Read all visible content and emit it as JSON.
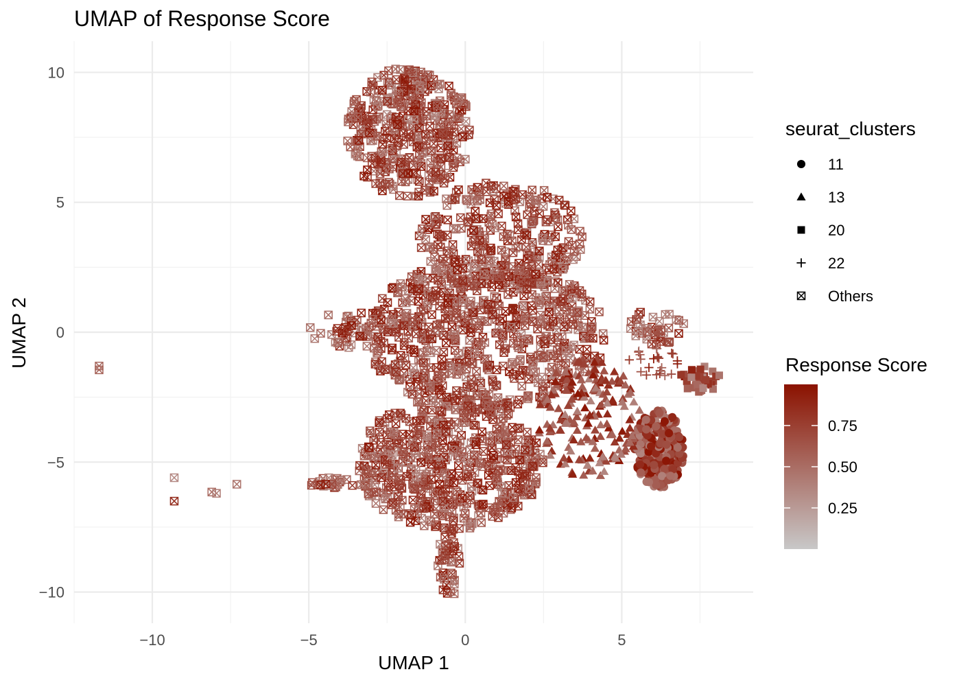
{
  "chart_data": {
    "type": "scatter",
    "title": "UMAP of Response Score",
    "xlabel": "UMAP 1",
    "ylabel": "UMAP 2",
    "xlim": [
      -12.5,
      9.2
    ],
    "ylim": [
      -11.2,
      11.2
    ],
    "x_ticks": [
      -10,
      -5,
      0,
      5
    ],
    "x_tick_labels": [
      "−10",
      "−5",
      "0",
      "5"
    ],
    "y_ticks": [
      -10,
      -5,
      0,
      5,
      10
    ],
    "y_tick_labels": [
      "−10",
      "−5",
      "0",
      "5",
      "10"
    ],
    "grid": true,
    "shape_legend": {
      "title": "seurat_clusters",
      "entries": [
        {
          "label": "11",
          "shape": "circle"
        },
        {
          "label": "13",
          "shape": "triangle"
        },
        {
          "label": "20",
          "shape": "square"
        },
        {
          "label": "22",
          "shape": "plus"
        },
        {
          "label": "Others",
          "shape": "boxed-x"
        }
      ]
    },
    "color_legend": {
      "title": "Response Score",
      "low_color": "#c8c8c8",
      "high_color": "#8b1200",
      "range": [
        0.0,
        1.0
      ],
      "ticks": [
        0.25,
        0.5,
        0.75
      ],
      "tick_labels": [
        "0.25",
        "0.50",
        "0.75"
      ]
    },
    "cluster_regions": [
      {
        "cluster": "Others",
        "shape": "boxed-x",
        "x_range": [
          -3.8,
          0.2
        ],
        "y_range": [
          5.2,
          10.2
        ],
        "n": 420
      },
      {
        "cluster": "Others",
        "shape": "boxed-x",
        "x_range": [
          -1.5,
          3.8
        ],
        "y_range": [
          1.5,
          5.8
        ],
        "n": 300
      },
      {
        "cluster": "Others",
        "shape": "boxed-x",
        "x_range": [
          -3.2,
          4.5
        ],
        "y_range": [
          -3.0,
          2.8
        ],
        "n": 700
      },
      {
        "cluster": "Others",
        "shape": "boxed-x",
        "x_range": [
          -3.5,
          2.5
        ],
        "y_range": [
          -7.6,
          -2.5
        ],
        "n": 600
      },
      {
        "cluster": "Others",
        "shape": "boxed-x",
        "x_range": [
          -0.9,
          -0.1
        ],
        "y_range": [
          -10.2,
          -7.5
        ],
        "n": 40
      },
      {
        "cluster": "Others",
        "shape": "boxed-x",
        "x_range": [
          -5.0,
          -2.5
        ],
        "y_range": [
          -0.6,
          0.9
        ],
        "n": 40
      },
      {
        "cluster": "Others",
        "shape": "boxed-x",
        "x_range": [
          -5.0,
          -3.5
        ],
        "y_range": [
          -6.0,
          -5.6
        ],
        "n": 20
      },
      {
        "cluster": "Others",
        "shape": "boxed-x",
        "x_range": [
          5.2,
          7.0
        ],
        "y_range": [
          -0.5,
          0.9
        ],
        "n": 40
      },
      {
        "cluster": "20",
        "shape": "square",
        "x_range": [
          6.8,
          8.2
        ],
        "y_range": [
          -2.3,
          -1.3
        ],
        "n": 40
      },
      {
        "cluster": "22",
        "shape": "plus",
        "x_range": [
          5.2,
          6.9
        ],
        "y_range": [
          -1.8,
          -0.6
        ],
        "n": 25
      },
      {
        "cluster": "11",
        "shape": "circle",
        "x_range": [
          5.4,
          7.0
        ],
        "y_range": [
          -6.0,
          -3.0
        ],
        "n": 320
      },
      {
        "cluster": "13",
        "shape": "triangle",
        "x_range": [
          2.3,
          5.6
        ],
        "y_range": [
          -5.6,
          -1.0
        ],
        "n": 200
      }
    ],
    "outlier_points": [
      {
        "x": -11.7,
        "y": -1.3,
        "cluster": "Others",
        "score": 0.5
      },
      {
        "x": -11.7,
        "y": -1.45,
        "cluster": "Others",
        "score": 0.55
      },
      {
        "x": -9.3,
        "y": -5.6,
        "cluster": "Others",
        "score": 0.35
      },
      {
        "x": -9.3,
        "y": -6.5,
        "cluster": "Others",
        "score": 0.85
      },
      {
        "x": -8.1,
        "y": -6.15,
        "cluster": "Others",
        "score": 0.5
      },
      {
        "x": -7.95,
        "y": -6.2,
        "cluster": "Others",
        "score": 0.4
      },
      {
        "x": -7.3,
        "y": -5.85,
        "cluster": "Others",
        "score": 0.45
      }
    ]
  }
}
